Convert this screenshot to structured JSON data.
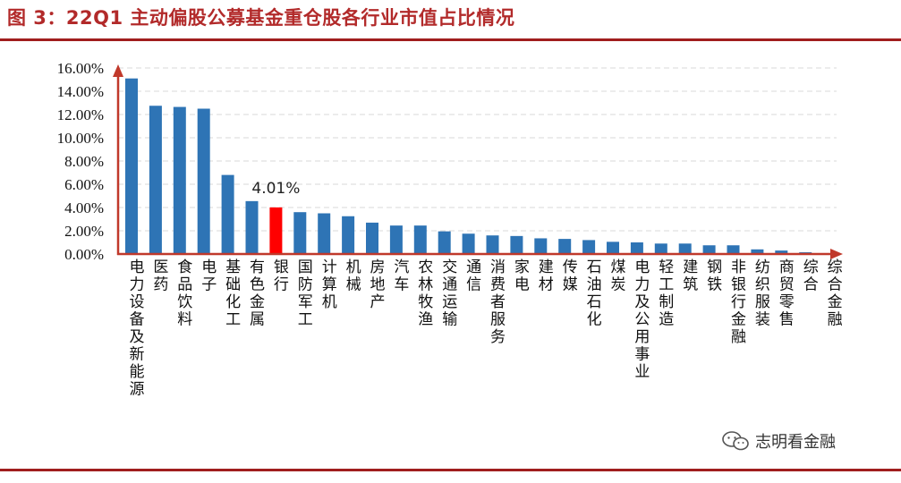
{
  "figure": {
    "title": "图 3：22Q1 主动偏股公募基金重仓股各行业市值占比情况"
  },
  "watermark": {
    "text": "志明看金融",
    "icon": "wechat-icon"
  },
  "colors": {
    "title": "#b22a2a",
    "rule": "#a01e1e",
    "bar": "#2e74b5",
    "highlight": "#ff0000",
    "axis": "#c0392b",
    "grid": "#d9d9d9"
  },
  "chart_data": {
    "type": "bar",
    "title": "",
    "xlabel": "",
    "ylabel": "",
    "ylim": [
      0,
      16
    ],
    "yticks": [
      "0.00%",
      "2.00%",
      "4.00%",
      "6.00%",
      "8.00%",
      "10.00%",
      "12.00%",
      "14.00%",
      "16.00%"
    ],
    "grid": true,
    "highlight_index": 6,
    "annotation": {
      "text": "4.01%",
      "category": "银行"
    },
    "categories": [
      "电力设备及新能源",
      "医药",
      "食品饮料",
      "电子",
      "基础化工",
      "有色金属",
      "银行",
      "国防军工",
      "计算机",
      "机械",
      "房地产",
      "汽车",
      "农林牧渔",
      "交通运输",
      "通信",
      "消费者服务",
      "家电",
      "建材",
      "传媒",
      "石油石化",
      "煤炭",
      "电力及公用事业",
      "轻工制造",
      "建筑",
      "钢铁",
      "非银行金融",
      "纺织服装",
      "商贸零售",
      "综合",
      "综合金融"
    ],
    "values": [
      15.1,
      12.75,
      12.65,
      12.5,
      6.8,
      4.55,
      4.01,
      3.6,
      3.5,
      3.25,
      2.7,
      2.45,
      2.45,
      1.95,
      1.75,
      1.6,
      1.55,
      1.35,
      1.3,
      1.2,
      1.05,
      1.0,
      0.9,
      0.9,
      0.75,
      0.75,
      0.4,
      0.3,
      0.15,
      0.05
    ]
  }
}
